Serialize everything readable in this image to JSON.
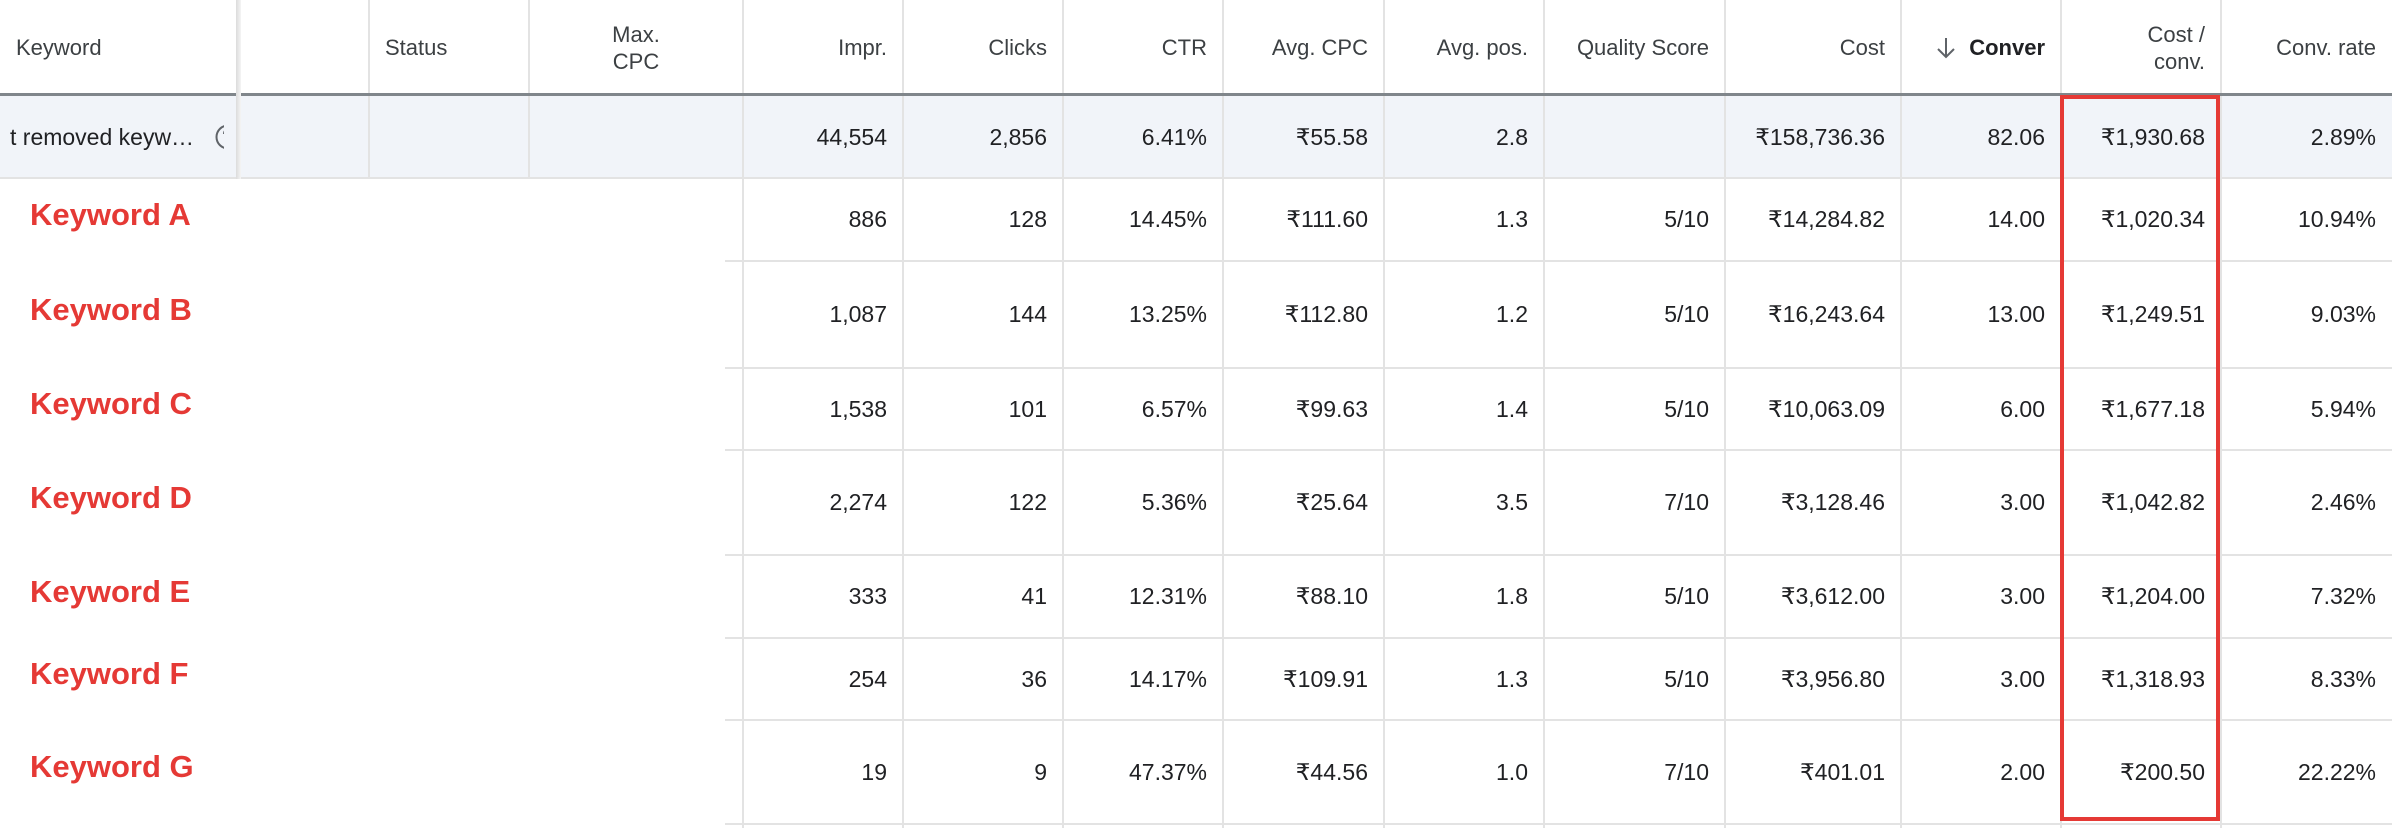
{
  "header": {
    "columns": [
      {
        "label": "Keyword"
      },
      {
        "label": "Status"
      },
      {
        "lines": [
          "Max.",
          "CPC"
        ]
      },
      {
        "label": "Impr."
      },
      {
        "label": "Clicks"
      },
      {
        "label": "CTR"
      },
      {
        "label": "Avg. CPC"
      },
      {
        "label": "Avg. pos."
      },
      {
        "label": "Quality Score"
      },
      {
        "label": "Cost"
      },
      {
        "label": "Conver",
        "sorted": true
      },
      {
        "lines": [
          "Cost /",
          "conv."
        ]
      },
      {
        "label": "Conv. rate"
      }
    ]
  },
  "total_row": {
    "label": "t removed keyw…",
    "cells": [
      "44,554",
      "2,856",
      "6.41%",
      "₹55.58",
      "2.8",
      null,
      "₹158,736.36",
      "82.06",
      "₹1,930.68",
      "2.89%"
    ]
  },
  "rows": [
    {
      "keyword": "Keyword A",
      "cells": [
        "886",
        "128",
        "14.45%",
        "₹111.60",
        "1.3",
        "5/10",
        "₹14,284.82",
        "14.00",
        "₹1,020.34",
        "10.94%"
      ]
    },
    {
      "keyword": "Keyword B",
      "cells": [
        "1,087",
        "144",
        "13.25%",
        "₹112.80",
        "1.2",
        "5/10",
        "₹16,243.64",
        "13.00",
        "₹1,249.51",
        "9.03%"
      ]
    },
    {
      "keyword": "Keyword C",
      "cells": [
        "1,538",
        "101",
        "6.57%",
        "₹99.63",
        "1.4",
        "5/10",
        "₹10,063.09",
        "6.00",
        "₹1,677.18",
        "5.94%"
      ]
    },
    {
      "keyword": "Keyword D",
      "cells": [
        "2,274",
        "122",
        "5.36%",
        "₹25.64",
        "3.5",
        "7/10",
        "₹3,128.46",
        "3.00",
        "₹1,042.82",
        "2.46%"
      ]
    },
    {
      "keyword": "Keyword E",
      "cells": [
        "333",
        "41",
        "12.31%",
        "₹88.10",
        "1.8",
        "5/10",
        "₹3,612.00",
        "3.00",
        "₹1,204.00",
        "7.32%"
      ]
    },
    {
      "keyword": "Keyword F",
      "cells": [
        "254",
        "36",
        "14.17%",
        "₹109.91",
        "1.3",
        "5/10",
        "₹3,956.80",
        "3.00",
        "₹1,318.93",
        "8.33%"
      ]
    },
    {
      "keyword": "Keyword G",
      "cells": [
        "19",
        "9",
        "47.37%",
        "₹44.56",
        "1.0",
        "7/10",
        "₹401.01",
        "2.00",
        "₹200.50",
        "22.22%"
      ]
    }
  ]
}
